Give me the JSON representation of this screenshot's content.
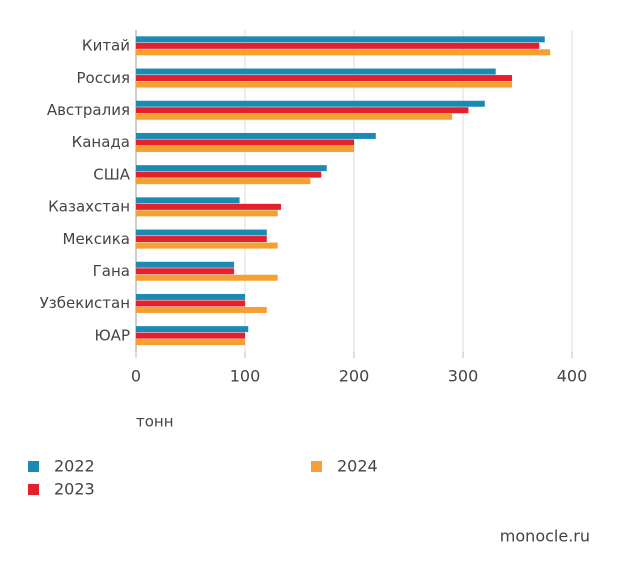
{
  "chart_data": {
    "type": "barh",
    "categories": [
      "Китай",
      "Россия",
      "Австралия",
      "Канада",
      "США",
      "Казахстан",
      "Мексика",
      "Гана",
      "Узбекистан",
      "ЮАР"
    ],
    "series": [
      {
        "name": "2022",
        "color": "#1a8ab5",
        "values": [
          375,
          330,
          320,
          220,
          175,
          95,
          120,
          90,
          100,
          103
        ]
      },
      {
        "name": "2023",
        "color": "#e3202b",
        "values": [
          370,
          345,
          305,
          200,
          170,
          133,
          120,
          90,
          100,
          100
        ]
      },
      {
        "name": "2024",
        "color": "#f5a030",
        "values": [
          380,
          345,
          290,
          200,
          160,
          130,
          130,
          130,
          120,
          100
        ]
      }
    ],
    "xlim": [
      0,
      400
    ],
    "xticks": [
      0,
      100,
      200,
      300,
      400
    ],
    "x_label": "тонн",
    "grid": true,
    "legend": "bottom",
    "source": "monocle.ru"
  }
}
